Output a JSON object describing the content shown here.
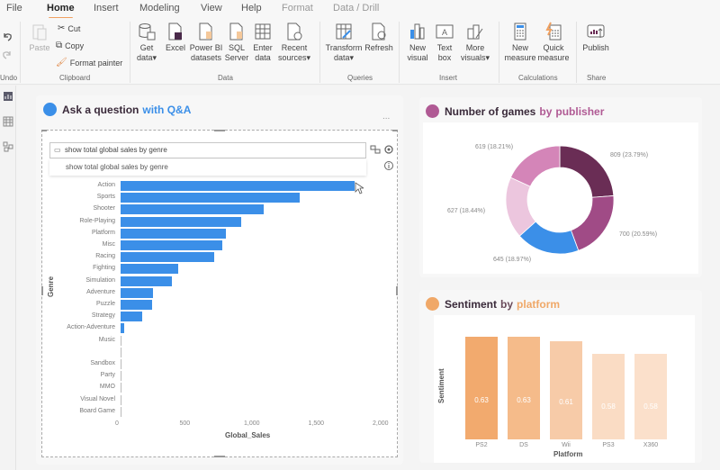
{
  "menu": {
    "tabs": [
      {
        "label": "File"
      },
      {
        "label": "Home"
      },
      {
        "label": "Insert"
      },
      {
        "label": "Modeling"
      },
      {
        "label": "View"
      },
      {
        "label": "Help"
      },
      {
        "label": "Format"
      },
      {
        "label": "Data / Drill"
      }
    ]
  },
  "ribbon": {
    "undo_group": "Undo",
    "clipboard": {
      "paste": "Paste",
      "cut": "Cut",
      "copy": "Copy",
      "format_painter": "Format painter",
      "group": "Clipboard"
    },
    "data": {
      "get_data": [
        "Get",
        "data"
      ],
      "excel": "Excel",
      "power_bi": [
        "Power BI",
        "datasets"
      ],
      "sql": [
        "SQL",
        "Server"
      ],
      "enter": [
        "Enter",
        "data"
      ],
      "recent": [
        "Recent",
        "sources"
      ],
      "group": "Data"
    },
    "queries": {
      "transform": [
        "Transform",
        "data"
      ],
      "refresh": "Refresh",
      "group": "Queries"
    },
    "insert": {
      "new_visual": [
        "New",
        "visual"
      ],
      "text_box": [
        "Text",
        "box"
      ],
      "more_visuals": [
        "More",
        "visuals"
      ],
      "group": "Insert"
    },
    "calculations": {
      "new_measure": [
        "New",
        "measure"
      ],
      "quick_measure": [
        "Quick",
        "measure"
      ],
      "group": "Calculations"
    },
    "share": {
      "publish": "Publish",
      "group": "Share"
    }
  },
  "qa_card": {
    "title_part1": "Ask a question",
    "title_part2": "with Q&A",
    "more": "...",
    "query": "show total global sales by genre",
    "suggestion": "show total global sales by genre",
    "accent": "#3b8fe8"
  },
  "pie_card": {
    "title_part1": "Number of games",
    "title_part2": "by",
    "title_part3": "publisher",
    "accent": "#b05a94"
  },
  "sentiment_card": {
    "title_part1": "Sentiment",
    "title_part2": "by",
    "title_part3": "platform",
    "accent": "#f0a868"
  },
  "chart_data": [
    {
      "type": "bar",
      "orientation": "horizontal",
      "categories": [
        "Action",
        "Sports",
        "Shooter",
        "Role-Playing",
        "Platform",
        "Misc",
        "Racing",
        "Fighting",
        "Simulation",
        "Adventure",
        "Puzzle",
        "Strategy",
        "Action-Adventure",
        "Music",
        "",
        "Sandbox",
        "Party",
        "MMO",
        "Visual Novel",
        "Board Game"
      ],
      "values": [
        1820,
        1390,
        1110,
        940,
        820,
        790,
        730,
        450,
        400,
        250,
        245,
        170,
        30,
        3,
        2,
        2,
        1,
        1,
        1,
        1
      ],
      "xlabel": "Global_Sales",
      "ylabel": "Genre",
      "xlim": [
        0,
        2000
      ],
      "xticks": [
        "0",
        "500",
        "1,000",
        "1,500",
        "2,000"
      ],
      "color": "#3b8fe8"
    },
    {
      "type": "pie",
      "donut": true,
      "slices": [
        {
          "value": 809,
          "label": "809 (23.79%)",
          "color": "#6a2d55"
        },
        {
          "value": 700,
          "label": "700 (20.59%)",
          "color": "#a04b86"
        },
        {
          "value": 645,
          "label": "645 (18.97%)",
          "color": "#3b8fe8"
        },
        {
          "value": 627,
          "label": "627 (18.44%)",
          "color": "#ecc6de"
        },
        {
          "value": 619,
          "label": "619 (18.21%)",
          "color": "#d485b8"
        }
      ]
    },
    {
      "type": "bar",
      "orientation": "vertical",
      "categories": [
        "PS2",
        "DS",
        "Wii",
        "PS3",
        "X360"
      ],
      "values": [
        0.63,
        0.63,
        0.61,
        0.58,
        0.58
      ],
      "labels": [
        "0.63",
        "0.63",
        "0.61",
        "0.58",
        "0.58"
      ],
      "colors": [
        "#f2aa6e",
        "#f5bb8a",
        "#f7cba8",
        "#fadcc4",
        "#fbe0cb"
      ],
      "xlabel": "Platform",
      "ylabel": "Sentiment",
      "ylim": [
        0,
        0.65
      ]
    }
  ]
}
